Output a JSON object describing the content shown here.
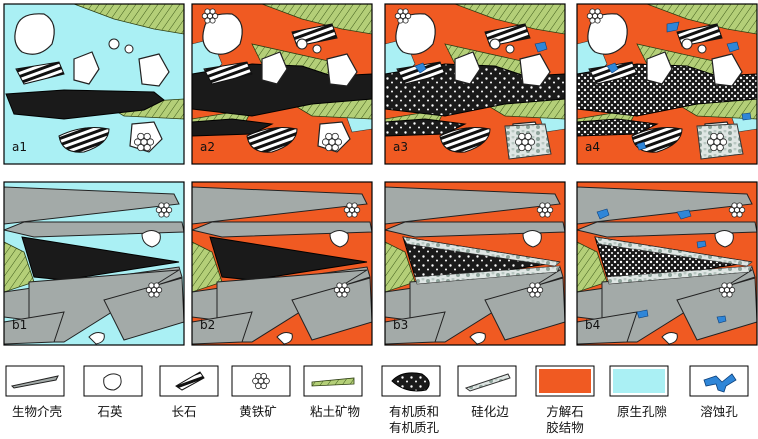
{
  "panels": {
    "row_a": [
      "a1",
      "a2",
      "a3",
      "a4"
    ],
    "row_b": [
      "b1",
      "b2",
      "b3",
      "b4"
    ]
  },
  "legend": {
    "items": [
      {
        "key": "bioclast",
        "label": "生物介壳"
      },
      {
        "key": "quartz",
        "label": "石英"
      },
      {
        "key": "feldspar",
        "label": "长石"
      },
      {
        "key": "pyrite",
        "label": "黄铁矿"
      },
      {
        "key": "clay",
        "label": "粘土矿物"
      },
      {
        "key": "organic",
        "label": "有机质和\n有机质孔"
      },
      {
        "key": "silica_rim",
        "label": "硅化边"
      },
      {
        "key": "calcite",
        "label": "方解石\n胶结物"
      },
      {
        "key": "primary_pore",
        "label": "原生孔隙"
      },
      {
        "key": "dissolution_pore",
        "label": "溶蚀孔"
      }
    ]
  },
  "colors": {
    "primary_pore": "#aaf0f4",
    "calcite": "#f05a22",
    "organic": "#1a1a1a",
    "bioclast": "#a3aaa8",
    "clay": "#b4cf78",
    "dissolution_pore": "#2f86d8",
    "quartz": "#ffffff",
    "silica_rim": "#dfe6e4"
  }
}
